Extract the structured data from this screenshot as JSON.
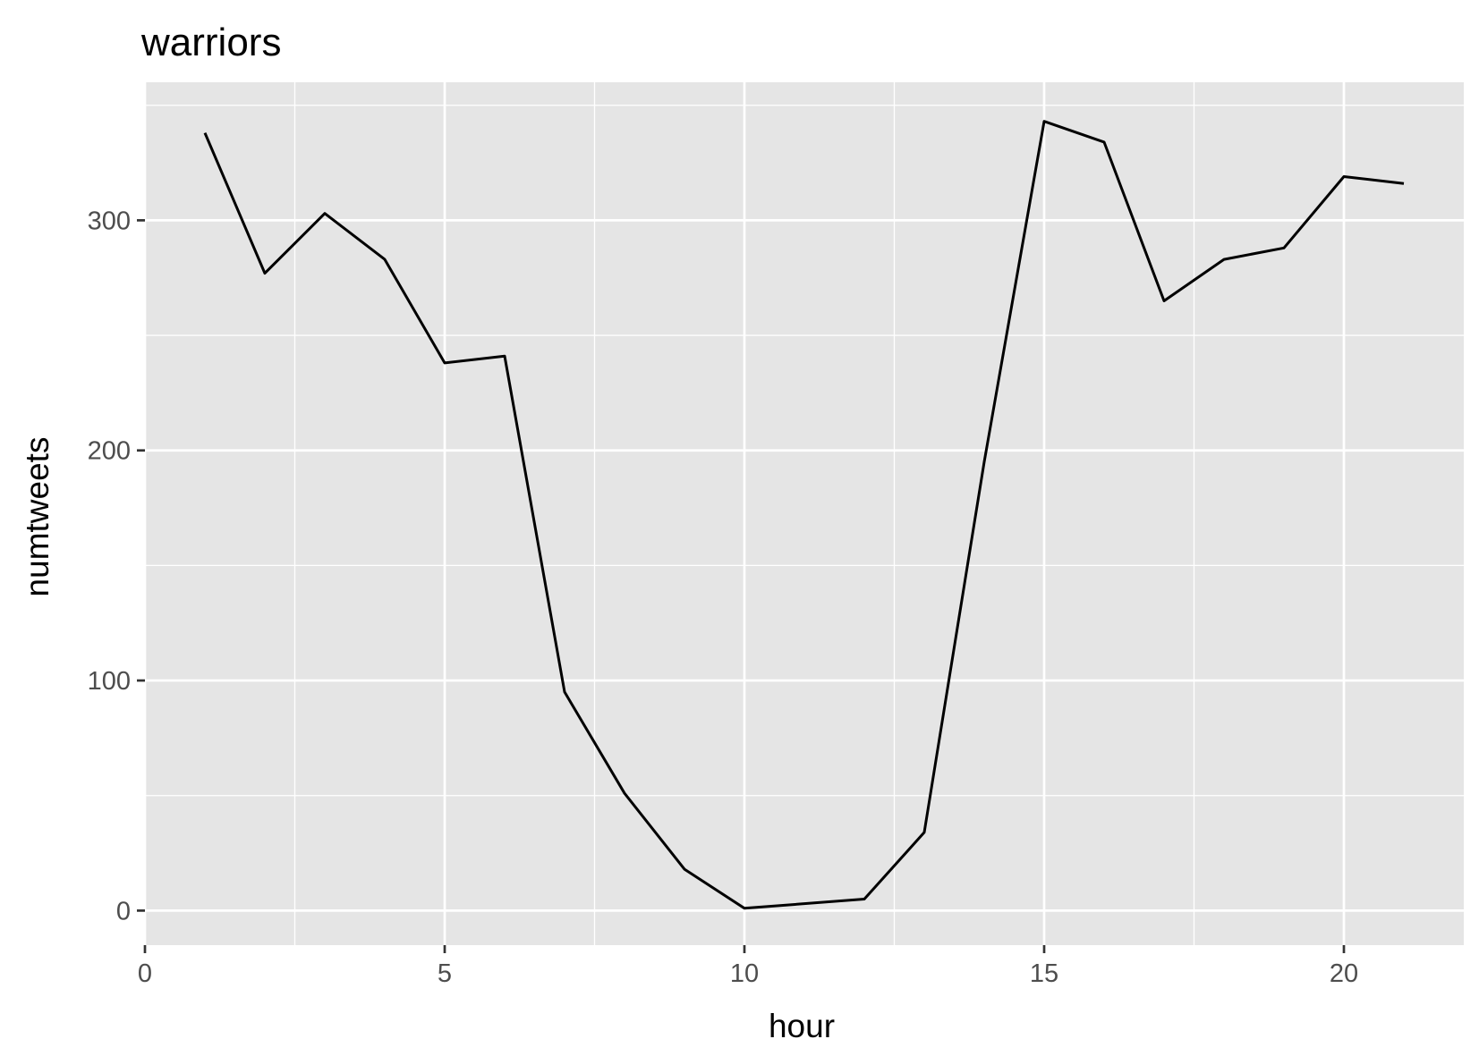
{
  "chart_data": {
    "type": "line",
    "title": "warriors",
    "xlabel": "hour",
    "ylabel": "numtweets",
    "xlim": [
      0,
      22
    ],
    "ylim": [
      -15,
      360
    ],
    "x_ticks": [
      0,
      5,
      10,
      15,
      20
    ],
    "x_tick_labels": [
      "0",
      "5",
      "10",
      "15",
      "20"
    ],
    "y_ticks": [
      0,
      100,
      200,
      300
    ],
    "y_tick_labels": [
      "0",
      "100",
      "200",
      "300"
    ],
    "x_minor_ticks": [
      2.5,
      7.5,
      12.5,
      17.5
    ],
    "y_minor_ticks": [
      50,
      150,
      250,
      350
    ],
    "grid": true,
    "legend": "none",
    "colors": {
      "panel": "#e5e5e5",
      "grid": "#ffffff",
      "line": "#000000",
      "tick": "#333333"
    },
    "series": [
      {
        "x": [
          1,
          2,
          3,
          4,
          5,
          6,
          7,
          8,
          9,
          10,
          12,
          13,
          14,
          15,
          16,
          17,
          18,
          19,
          20,
          21
        ],
        "values": [
          338,
          277,
          303,
          283,
          238,
          241,
          95,
          51,
          18,
          1,
          5,
          34,
          195,
          343,
          334,
          265,
          283,
          288,
          319,
          316
        ]
      }
    ]
  }
}
